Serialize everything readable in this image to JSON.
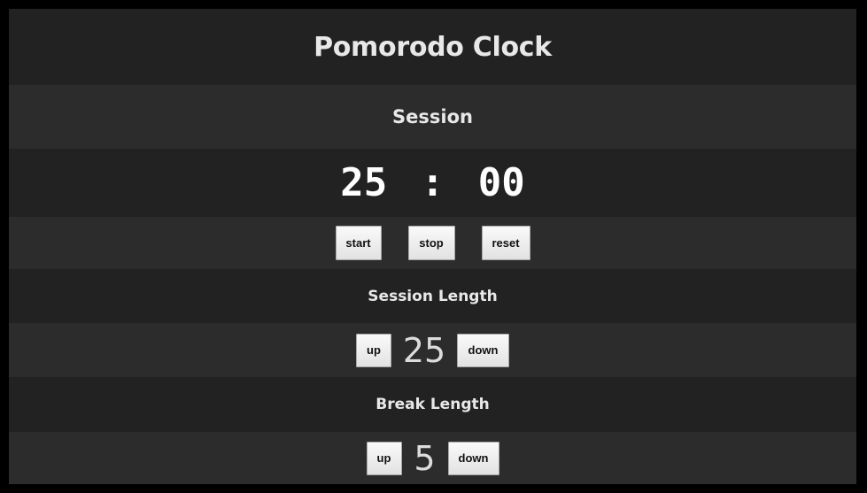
{
  "app": {
    "title": "Pomorodo Clock"
  },
  "session": {
    "heading": "Session",
    "minutes": "25",
    "separator": ":",
    "seconds": "00"
  },
  "controls": {
    "start_label": "start",
    "stop_label": "stop",
    "reset_label": "reset"
  },
  "session_length": {
    "heading": "Session Length",
    "up_label": "up",
    "value": "25",
    "down_label": "down"
  },
  "break_length": {
    "heading": "Break Length",
    "up_label": "up",
    "value": "5",
    "down_label": "down"
  },
  "colors": {
    "background": "#000000",
    "band_dark": "#222222",
    "band_light": "#2c2c2c",
    "text": "#e8e8e8",
    "button_face": "#f0f0f0"
  }
}
